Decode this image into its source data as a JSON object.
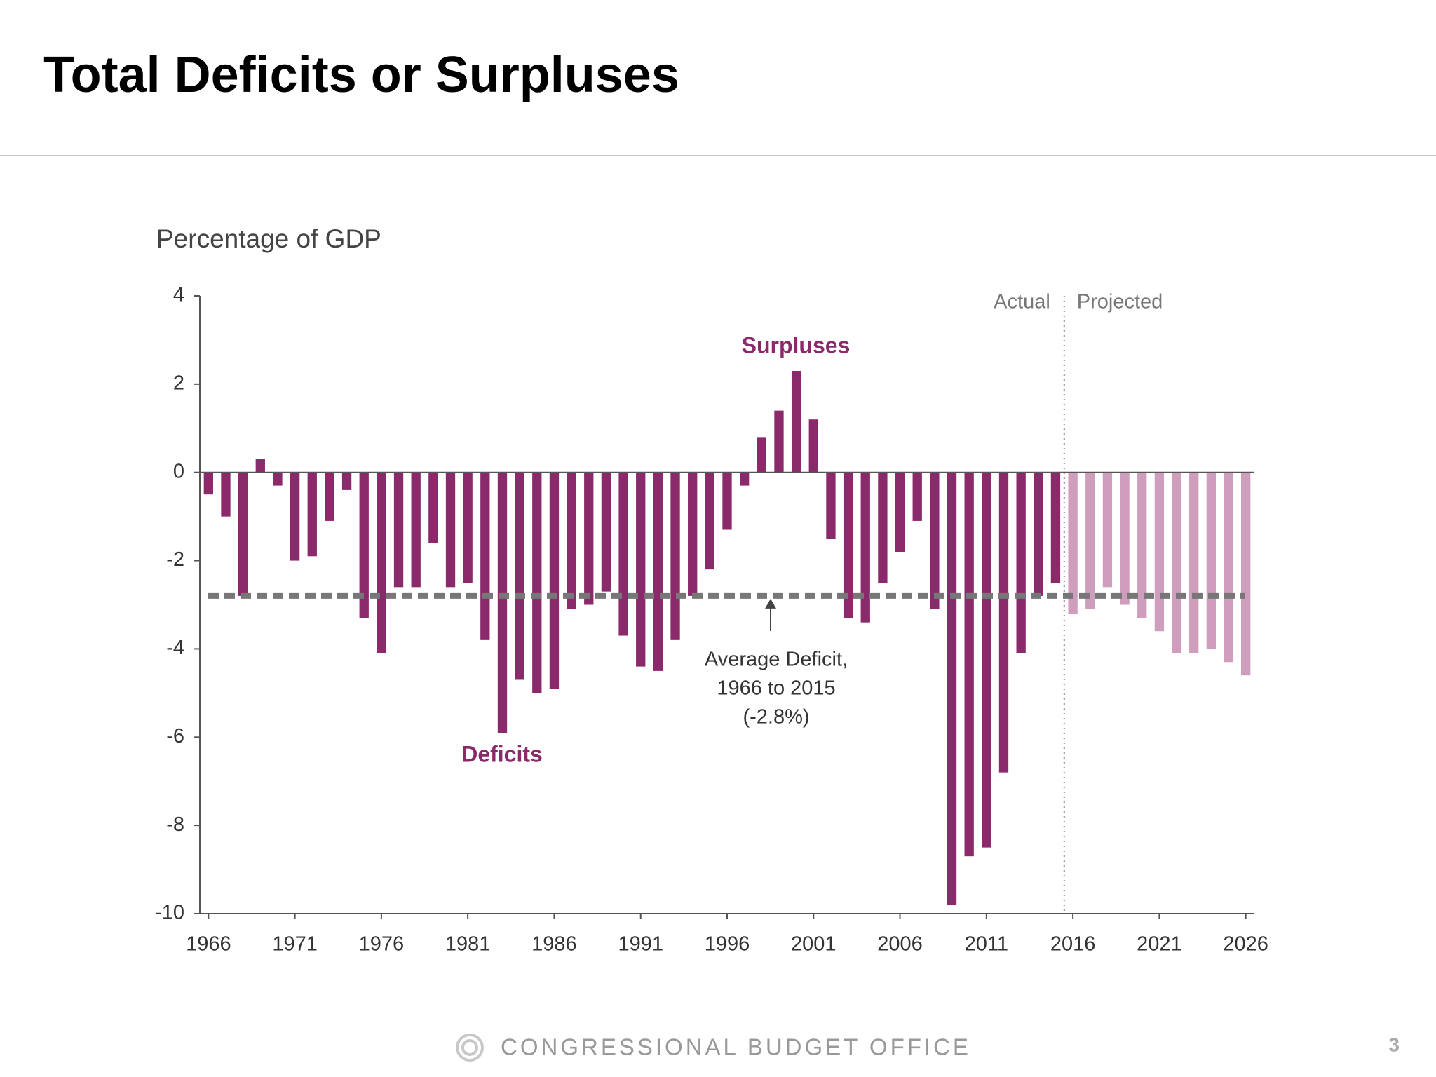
{
  "chart_data": {
    "type": "bar",
    "title": "Total Deficits or Surpluses",
    "y_label": "Percentage of GDP",
    "x": [
      1966,
      1967,
      1968,
      1969,
      1970,
      1971,
      1972,
      1973,
      1974,
      1975,
      1976,
      1977,
      1978,
      1979,
      1980,
      1981,
      1982,
      1983,
      1984,
      1985,
      1986,
      1987,
      1988,
      1989,
      1990,
      1991,
      1992,
      1993,
      1994,
      1995,
      1996,
      1997,
      1998,
      1999,
      2000,
      2001,
      2002,
      2003,
      2004,
      2005,
      2006,
      2007,
      2008,
      2009,
      2010,
      2011,
      2012,
      2013,
      2014,
      2015,
      2016,
      2017,
      2018,
      2019,
      2020,
      2021,
      2022,
      2023,
      2024,
      2025,
      2026
    ],
    "series": [
      {
        "name": "Actual",
        "color": "#8b2a6b",
        "values": [
          -0.5,
          -1.0,
          -2.8,
          0.3,
          -0.3,
          -2.0,
          -1.9,
          -1.1,
          -0.4,
          -3.3,
          -4.1,
          -2.6,
          -2.6,
          -1.6,
          -2.6,
          -2.5,
          -3.8,
          -5.9,
          -4.7,
          -5.0,
          -4.9,
          -3.1,
          -3.0,
          -2.7,
          -3.7,
          -4.4,
          -4.5,
          -3.8,
          -2.8,
          -2.2,
          -1.3,
          -0.3,
          0.8,
          1.4,
          2.3,
          1.2,
          -1.5,
          -3.3,
          -3.4,
          -2.5,
          -1.8,
          -1.1,
          -3.1,
          -9.8,
          -8.7,
          -8.5,
          -6.8,
          -4.1,
          -2.8,
          -2.5,
          null,
          null,
          null,
          null,
          null,
          null,
          null,
          null,
          null,
          null,
          null
        ]
      },
      {
        "name": "Projected",
        "color": "#cf9ebd",
        "values": [
          null,
          null,
          null,
          null,
          null,
          null,
          null,
          null,
          null,
          null,
          null,
          null,
          null,
          null,
          null,
          null,
          null,
          null,
          null,
          null,
          null,
          null,
          null,
          null,
          null,
          null,
          null,
          null,
          null,
          null,
          null,
          null,
          null,
          null,
          null,
          null,
          null,
          null,
          null,
          null,
          null,
          null,
          null,
          null,
          null,
          null,
          null,
          null,
          null,
          null,
          -3.2,
          -3.1,
          -2.6,
          -3.0,
          -3.3,
          -3.6,
          -4.1,
          -4.1,
          -4.0,
          -4.3,
          -4.6
        ]
      }
    ],
    "xlim": [
      1965.5,
      2026.5
    ],
    "xticks": [
      1966,
      1971,
      1976,
      1981,
      1986,
      1991,
      1996,
      2001,
      2006,
      2011,
      2016,
      2021,
      2026
    ],
    "ylim": [
      -10,
      4
    ],
    "yticks": [
      -10,
      -8,
      -6,
      -4,
      -2,
      0,
      2,
      4
    ],
    "average_line": {
      "value": -2.8,
      "color": "#777777",
      "label": [
        "Average Deficit,",
        "1966 to 2015",
        "(-2.8%)"
      ]
    },
    "annotations": [
      "Surpluses",
      "Deficits"
    ]
  },
  "footer": {
    "organization": "CONGRESSIONAL BUDGET OFFICE",
    "page_number": "3"
  }
}
